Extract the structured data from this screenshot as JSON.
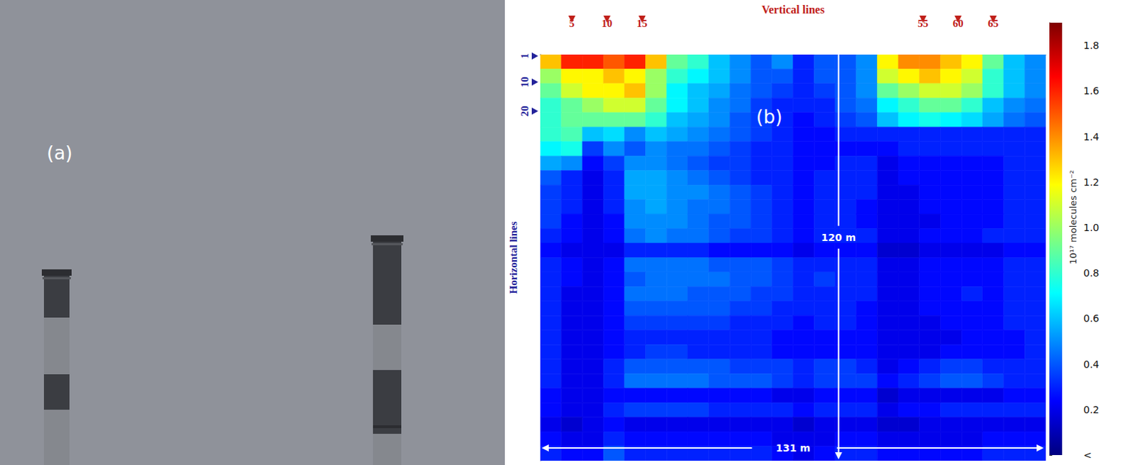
{
  "photo": {
    "panel_label": "(a)"
  },
  "chart_data": {
    "type": "heatmap",
    "panel_label": "(b)",
    "x_label": "Vertical lines",
    "y_label": "Horizontal lines",
    "xlim": [
      0.5,
      72.5
    ],
    "xticks": [
      5,
      10,
      15,
      55,
      60,
      65
    ],
    "ylim": [
      0.5,
      140.5
    ],
    "yticks": [
      1,
      10,
      20
    ],
    "x_edges": [
      0.5,
      3.5,
      6.5,
      9.5,
      12.5,
      15.5,
      18.5,
      21.5,
      24.5,
      27.5,
      30.5,
      33.5,
      36.5,
      39.5,
      42.5,
      45.5,
      48.5,
      51.5,
      54.5,
      57.5,
      60.5,
      63.5,
      66.5,
      69.5,
      72.5
    ],
    "y_edges": [
      0.5,
      5.5,
      10.5,
      15.5,
      20.5,
      25.5,
      30.5,
      35.5,
      40.5,
      45.5,
      50.5,
      55.5,
      60.5,
      65.5,
      70.5,
      75.5,
      80.5,
      85.5,
      90.5,
      95.5,
      100.5,
      105.5,
      110.5,
      115.5,
      120.5,
      125.5,
      130.5,
      135.5,
      140.5
    ],
    "cells": [
      [
        1.3,
        1.6,
        1.6,
        1.5,
        1.6,
        1.3,
        0.9,
        0.8,
        0.6,
        0.5,
        0.4,
        0.5,
        0.3,
        0.4,
        0.4,
        0.5,
        1.2,
        1.4,
        1.4,
        1.3,
        1.2,
        0.9,
        0.6,
        0.5
      ],
      [
        1.0,
        1.2,
        1.2,
        1.3,
        1.2,
        1.0,
        0.8,
        0.7,
        0.6,
        0.5,
        0.4,
        0.4,
        0.3,
        0.4,
        0.4,
        0.5,
        1.1,
        1.2,
        1.3,
        1.2,
        1.1,
        0.8,
        0.6,
        0.5
      ],
      [
        0.9,
        1.1,
        1.2,
        1.2,
        1.3,
        1.0,
        0.7,
        0.6,
        0.55,
        0.45,
        0.4,
        0.35,
        0.3,
        0.35,
        0.4,
        0.5,
        0.9,
        1.0,
        1.1,
        1.1,
        1.0,
        0.8,
        0.6,
        0.5
      ],
      [
        0.8,
        0.9,
        1.0,
        1.1,
        1.1,
        0.9,
        0.7,
        0.6,
        0.5,
        0.45,
        0.35,
        0.3,
        0.3,
        0.3,
        0.4,
        0.45,
        0.7,
        0.8,
        0.9,
        0.9,
        0.8,
        0.6,
        0.5,
        0.45
      ],
      [
        0.8,
        0.9,
        0.9,
        0.9,
        0.9,
        0.8,
        0.6,
        0.55,
        0.5,
        0.4,
        0.35,
        0.3,
        0.25,
        0.3,
        0.35,
        0.4,
        0.6,
        0.7,
        0.75,
        0.7,
        0.65,
        0.55,
        0.45,
        0.4
      ],
      [
        0.8,
        0.85,
        0.6,
        0.65,
        0.5,
        0.6,
        0.55,
        0.5,
        0.45,
        0.4,
        0.35,
        0.3,
        0.25,
        0.25,
        0.3,
        0.3,
        0.3,
        0.3,
        0.3,
        0.3,
        0.3,
        0.3,
        0.3,
        0.3
      ],
      [
        0.7,
        0.75,
        0.35,
        0.5,
        0.4,
        0.5,
        0.45,
        0.45,
        0.4,
        0.35,
        0.3,
        0.3,
        0.25,
        0.25,
        0.25,
        0.25,
        0.25,
        0.3,
        0.3,
        0.3,
        0.3,
        0.3,
        0.3,
        0.3
      ],
      [
        0.55,
        0.5,
        0.25,
        0.35,
        0.5,
        0.5,
        0.45,
        0.4,
        0.35,
        0.35,
        0.3,
        0.3,
        0.25,
        0.25,
        0.3,
        0.3,
        0.2,
        0.25,
        0.25,
        0.25,
        0.25,
        0.25,
        0.3,
        0.3
      ],
      [
        0.4,
        0.3,
        0.2,
        0.3,
        0.55,
        0.55,
        0.5,
        0.45,
        0.4,
        0.35,
        0.3,
        0.3,
        0.25,
        0.3,
        0.3,
        0.3,
        0.2,
        0.25,
        0.25,
        0.25,
        0.25,
        0.25,
        0.3,
        0.3
      ],
      [
        0.35,
        0.3,
        0.2,
        0.3,
        0.55,
        0.55,
        0.5,
        0.5,
        0.45,
        0.4,
        0.35,
        0.3,
        0.25,
        0.3,
        0.3,
        0.3,
        0.2,
        0.2,
        0.25,
        0.25,
        0.25,
        0.25,
        0.3,
        0.3
      ],
      [
        0.35,
        0.3,
        0.2,
        0.3,
        0.5,
        0.55,
        0.5,
        0.45,
        0.45,
        0.4,
        0.35,
        0.3,
        0.25,
        0.3,
        0.3,
        0.25,
        0.2,
        0.2,
        0.25,
        0.25,
        0.25,
        0.25,
        0.3,
        0.3
      ],
      [
        0.35,
        0.25,
        0.2,
        0.25,
        0.5,
        0.5,
        0.5,
        0.45,
        0.4,
        0.4,
        0.35,
        0.3,
        0.25,
        0.3,
        0.3,
        0.25,
        0.2,
        0.2,
        0.2,
        0.25,
        0.25,
        0.25,
        0.3,
        0.3
      ],
      [
        0.3,
        0.25,
        0.2,
        0.25,
        0.45,
        0.5,
        0.45,
        0.45,
        0.4,
        0.35,
        0.35,
        0.3,
        0.25,
        0.3,
        0.3,
        0.3,
        0.2,
        0.2,
        0.25,
        0.25,
        0.25,
        0.3,
        0.3,
        0.3
      ],
      [
        0.25,
        0.2,
        0.2,
        0.2,
        0.3,
        0.3,
        0.3,
        0.3,
        0.25,
        0.25,
        0.25,
        0.25,
        0.2,
        0.25,
        0.25,
        0.25,
        0.15,
        0.15,
        0.2,
        0.2,
        0.2,
        0.2,
        0.25,
        0.25
      ],
      [
        0.3,
        0.25,
        0.2,
        0.25,
        0.45,
        0.45,
        0.45,
        0.45,
        0.4,
        0.4,
        0.4,
        0.35,
        0.3,
        0.3,
        0.3,
        0.3,
        0.2,
        0.2,
        0.25,
        0.25,
        0.25,
        0.25,
        0.3,
        0.3
      ],
      [
        0.3,
        0.25,
        0.2,
        0.25,
        0.4,
        0.45,
        0.45,
        0.45,
        0.45,
        0.4,
        0.4,
        0.35,
        0.3,
        0.35,
        0.3,
        0.3,
        0.2,
        0.2,
        0.25,
        0.25,
        0.25,
        0.25,
        0.3,
        0.3
      ],
      [
        0.3,
        0.2,
        0.2,
        0.25,
        0.45,
        0.45,
        0.45,
        0.4,
        0.4,
        0.4,
        0.35,
        0.35,
        0.3,
        0.3,
        0.3,
        0.3,
        0.2,
        0.2,
        0.25,
        0.25,
        0.3,
        0.25,
        0.3,
        0.3
      ],
      [
        0.3,
        0.2,
        0.2,
        0.25,
        0.4,
        0.4,
        0.4,
        0.4,
        0.4,
        0.35,
        0.35,
        0.3,
        0.3,
        0.3,
        0.3,
        0.25,
        0.2,
        0.2,
        0.25,
        0.25,
        0.25,
        0.25,
        0.3,
        0.3
      ],
      [
        0.3,
        0.2,
        0.2,
        0.25,
        0.35,
        0.35,
        0.35,
        0.35,
        0.35,
        0.3,
        0.3,
        0.3,
        0.25,
        0.3,
        0.3,
        0.25,
        0.2,
        0.2,
        0.2,
        0.25,
        0.25,
        0.25,
        0.3,
        0.3
      ],
      [
        0.3,
        0.2,
        0.2,
        0.25,
        0.3,
        0.3,
        0.3,
        0.3,
        0.3,
        0.3,
        0.3,
        0.25,
        0.25,
        0.25,
        0.25,
        0.25,
        0.2,
        0.2,
        0.2,
        0.2,
        0.25,
        0.25,
        0.25,
        0.3
      ],
      [
        0.3,
        0.2,
        0.2,
        0.25,
        0.3,
        0.35,
        0.35,
        0.3,
        0.3,
        0.3,
        0.3,
        0.25,
        0.25,
        0.25,
        0.25,
        0.25,
        0.2,
        0.2,
        0.2,
        0.25,
        0.25,
        0.25,
        0.25,
        0.3
      ],
      [
        0.3,
        0.2,
        0.2,
        0.3,
        0.4,
        0.4,
        0.4,
        0.4,
        0.4,
        0.35,
        0.35,
        0.35,
        0.3,
        0.35,
        0.35,
        0.3,
        0.2,
        0.25,
        0.3,
        0.35,
        0.35,
        0.3,
        0.3,
        0.3
      ],
      [
        0.3,
        0.2,
        0.2,
        0.3,
        0.45,
        0.45,
        0.45,
        0.45,
        0.4,
        0.4,
        0.4,
        0.35,
        0.3,
        0.35,
        0.35,
        0.35,
        0.25,
        0.3,
        0.35,
        0.4,
        0.4,
        0.35,
        0.3,
        0.3
      ],
      [
        0.25,
        0.2,
        0.2,
        0.25,
        0.25,
        0.25,
        0.25,
        0.25,
        0.25,
        0.25,
        0.25,
        0.2,
        0.2,
        0.25,
        0.25,
        0.25,
        0.15,
        0.2,
        0.2,
        0.2,
        0.2,
        0.2,
        0.25,
        0.25
      ],
      [
        0.25,
        0.2,
        0.2,
        0.3,
        0.35,
        0.35,
        0.35,
        0.35,
        0.3,
        0.3,
        0.3,
        0.3,
        0.25,
        0.3,
        0.3,
        0.3,
        0.2,
        0.25,
        0.25,
        0.3,
        0.3,
        0.3,
        0.3,
        0.3
      ],
      [
        0.2,
        0.15,
        0.2,
        0.25,
        0.2,
        0.2,
        0.2,
        0.2,
        0.2,
        0.2,
        0.2,
        0.2,
        0.15,
        0.2,
        0.2,
        0.2,
        0.15,
        0.15,
        0.2,
        0.2,
        0.2,
        0.2,
        0.2,
        0.2
      ],
      [
        0.25,
        0.2,
        0.2,
        0.3,
        0.25,
        0.25,
        0.25,
        0.25,
        0.25,
        0.25,
        0.25,
        0.2,
        0.2,
        0.2,
        0.25,
        0.25,
        0.2,
        0.2,
        0.2,
        0.2,
        0.2,
        0.25,
        0.25,
        0.25
      ],
      [
        0.3,
        0.25,
        0.25,
        0.4,
        0.3,
        0.3,
        0.3,
        0.3,
        0.3,
        0.3,
        0.3,
        0.25,
        0.2,
        0.25,
        0.3,
        0.3,
        0.25,
        0.25,
        0.25,
        0.25,
        0.25,
        0.3,
        0.3,
        0.3
      ]
    ],
    "colorbar": {
      "title": "10¹⁷ molecules cm⁻²",
      "range": [
        0,
        1.9
      ],
      "ticks": [
        {
          "value": 0,
          "label": "<"
        },
        0.2,
        0.4,
        0.6,
        0.8,
        {
          "value": 1,
          "label": "1.0"
        },
        1.2,
        1.4,
        1.6,
        1.8
      ]
    },
    "annotations": [
      {
        "text": "120 m"
      },
      {
        "text": "131 m"
      }
    ]
  }
}
